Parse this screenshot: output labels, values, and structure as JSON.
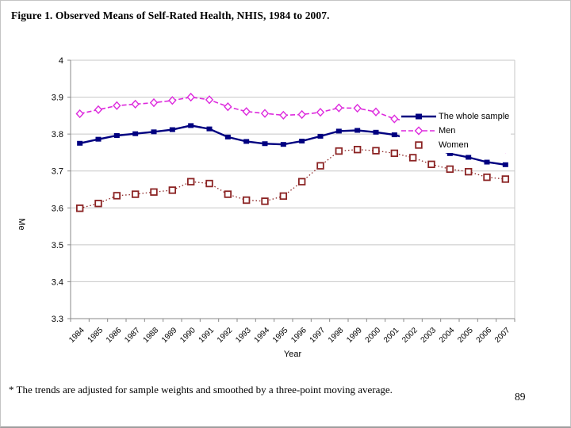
{
  "page": {
    "title": "Figure 1. Observed Means of Self-Rated Health, NHIS, 1984 to 2007.",
    "footnote": "* The trends are adjusted for sample weights and smoothed by a three-point moving average.",
    "page_number": "89"
  },
  "chart_data": {
    "type": "line",
    "title": "",
    "xlabel": "Year",
    "ylabel_visible": "Me",
    "ylim": [
      3.3,
      4.0
    ],
    "yticks": [
      "4",
      "3.9",
      "3.8",
      "3.7",
      "3.6",
      "3.5",
      "3.4",
      "3.3"
    ],
    "grid": true,
    "legend_position": "top-right-inside",
    "colors": {
      "grid": "#c7c7c7",
      "axis": "#8a8a8a",
      "tick_label": "#000000"
    },
    "categories": [
      "1984",
      "1985",
      "1986",
      "1987",
      "1988",
      "1989",
      "1990",
      "1991",
      "1992",
      "1993",
      "1994",
      "1995",
      "1996",
      "1997",
      "1998",
      "1999",
      "2000",
      "2001",
      "2002",
      "2003",
      "2004",
      "2005",
      "2006",
      "2007"
    ],
    "series": [
      {
        "name": "The whole sample",
        "color": "#000080",
        "line": "solid",
        "marker": "square-filled",
        "legend_line": true,
        "values": [
          3.775,
          3.786,
          3.796,
          3.801,
          3.806,
          3.812,
          3.823,
          3.814,
          3.792,
          3.78,
          3.774,
          3.772,
          3.781,
          3.794,
          3.808,
          3.81,
          3.805,
          3.798,
          3.784,
          3.764,
          3.747,
          3.737,
          3.724,
          3.717
        ]
      },
      {
        "name": "Men",
        "color": "#dd2add",
        "line": "dashed",
        "marker": "diamond-open",
        "legend_line": true,
        "values": [
          3.855,
          3.866,
          3.877,
          3.881,
          3.885,
          3.891,
          3.9,
          3.893,
          3.874,
          3.861,
          3.856,
          3.851,
          3.853,
          3.859,
          3.871,
          3.87,
          3.86,
          3.841,
          3.833,
          3.816,
          3.805,
          3.787,
          3.77,
          3.76
        ]
      },
      {
        "name": "Women",
        "color": "#8b2323",
        "line": "dotted",
        "marker": "square-open",
        "legend_line": false,
        "values": [
          3.599,
          3.612,
          3.633,
          3.637,
          3.643,
          3.648,
          3.671,
          3.666,
          3.637,
          3.621,
          3.618,
          3.632,
          3.671,
          3.714,
          3.754,
          3.758,
          3.755,
          3.748,
          3.736,
          3.718,
          3.705,
          3.698,
          3.683,
          3.678
        ]
      }
    ]
  }
}
